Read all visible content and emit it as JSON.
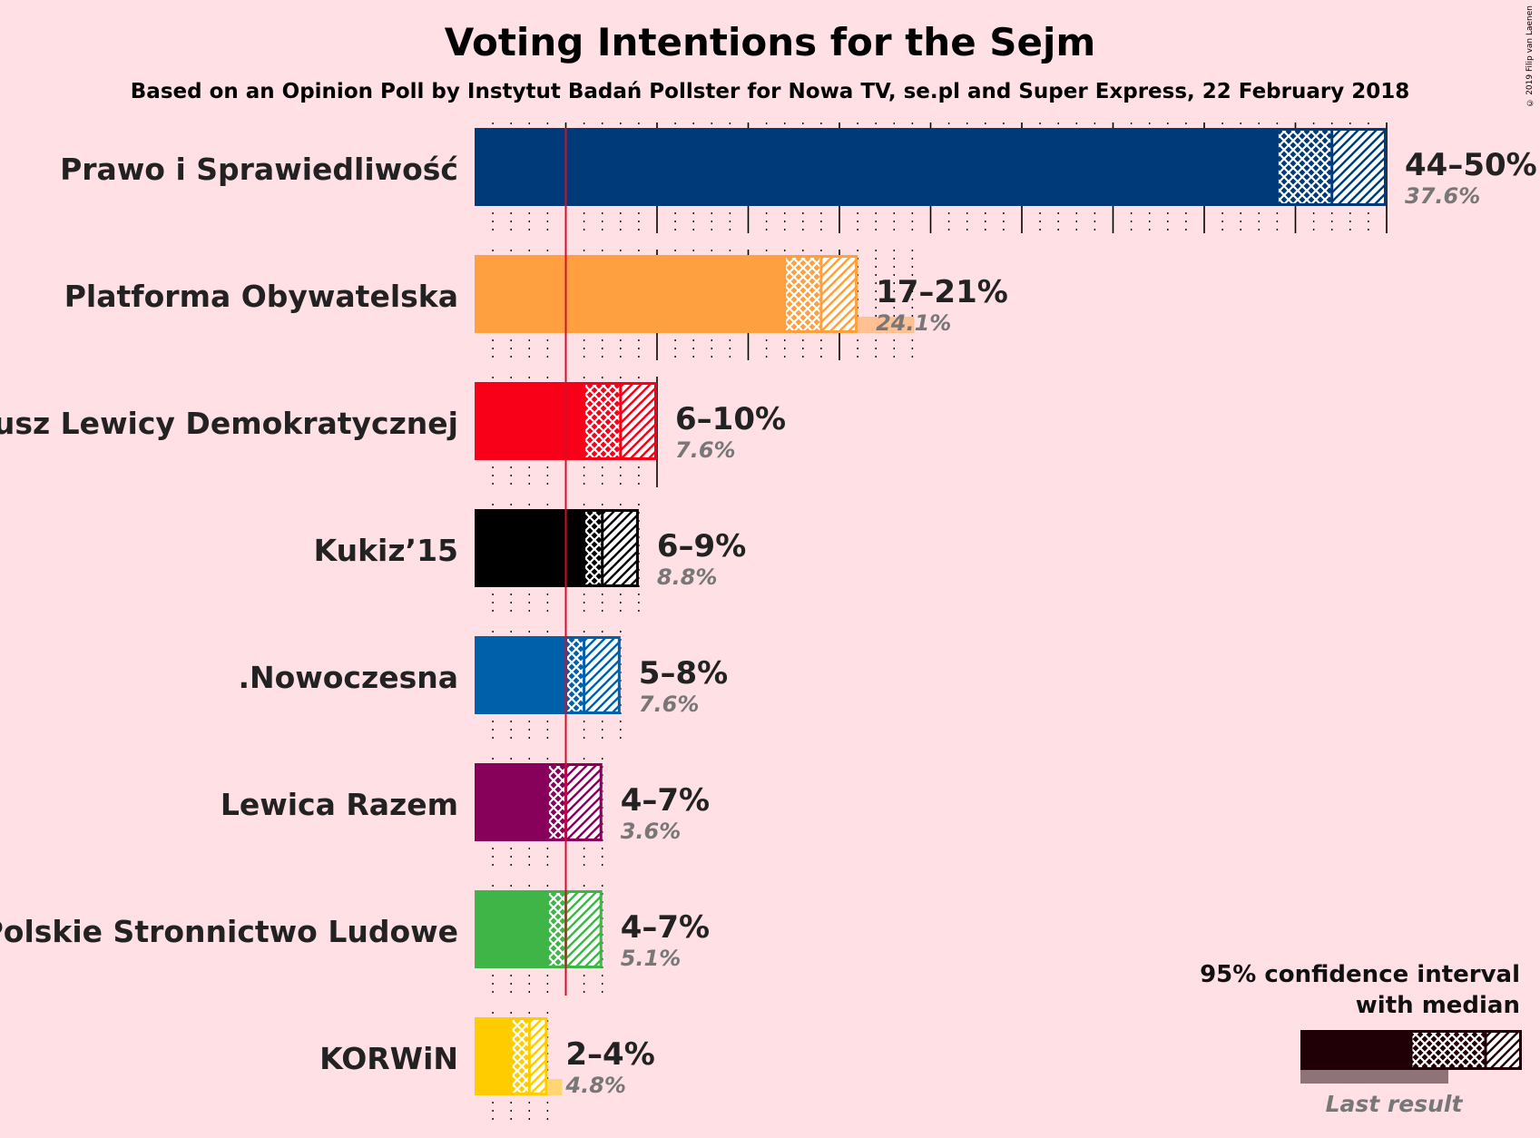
{
  "title": "Voting Intentions for the Sejm",
  "subtitle": "Based on an Opinion Poll by Instytut Badań Pollster for Nowa TV, se.pl and Super Express, 22 February 2018",
  "copyright": "© 2019 Filip van Laenen",
  "chart_data": {
    "type": "bar",
    "orientation": "horizontal",
    "x_unit": "%",
    "threshold": 5,
    "categories": [
      "Prawo i Sprawiedliwość",
      "Platforma Obywatelska",
      "Sojusz Lewicy Demokratycznej",
      "Kukiz’15",
      ".Nowoczesna",
      "Lewica Razem",
      "Polskie Stronnictwo Ludowe",
      "KORWiN"
    ],
    "series": [
      {
        "name": "95% confidence interval with median",
        "ci_low": [
          44,
          17,
          6,
          6,
          5,
          4,
          4,
          2
        ],
        "median": [
          47,
          19,
          8,
          7,
          6,
          5,
          5,
          3
        ],
        "ci_high": [
          50,
          21,
          10,
          9,
          8,
          7,
          7,
          4
        ],
        "labels": [
          "44–50%",
          "17–21%",
          "6–10%",
          "6–9%",
          "5–8%",
          "4–7%",
          "4–7%",
          "2–4%"
        ]
      },
      {
        "name": "Last result",
        "values": [
          37.6,
          24.1,
          7.6,
          8.8,
          7.6,
          3.6,
          5.1,
          4.8
        ],
        "labels": [
          "37.6%",
          "24.1%",
          "7.6%",
          "8.8%",
          "7.6%",
          "3.6%",
          "5.1%",
          "4.8%"
        ]
      }
    ],
    "colors": [
      "#003A78",
      "#FFA040",
      "#F70018",
      "#000000",
      "#0060AA",
      "#87005A",
      "#3FB548",
      "#FFCC00"
    ],
    "legend": {
      "title_line1": "95% confidence interval",
      "title_line2": "with median",
      "last_result": "Last result",
      "position": "bottom-right"
    }
  }
}
